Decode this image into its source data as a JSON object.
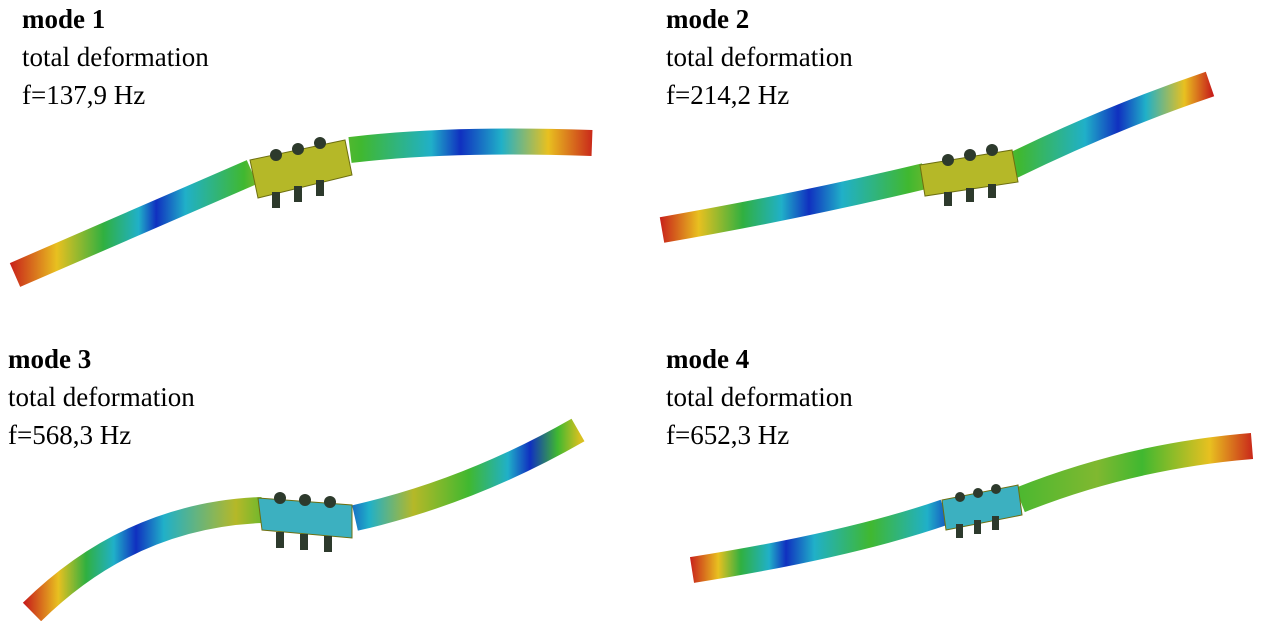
{
  "panels": [
    {
      "title": "mode 1",
      "subtitle": "total deformation",
      "frequency": "f=137,9 Hz"
    },
    {
      "title": "mode 2",
      "subtitle": "total deformation",
      "frequency": "f=214,2 Hz"
    },
    {
      "title": "mode 3",
      "subtitle": "total deformation",
      "frequency": "f=568,3 Hz"
    },
    {
      "title": "mode 4",
      "subtitle": "total deformation",
      "frequency": "f=652,3 Hz"
    }
  ]
}
